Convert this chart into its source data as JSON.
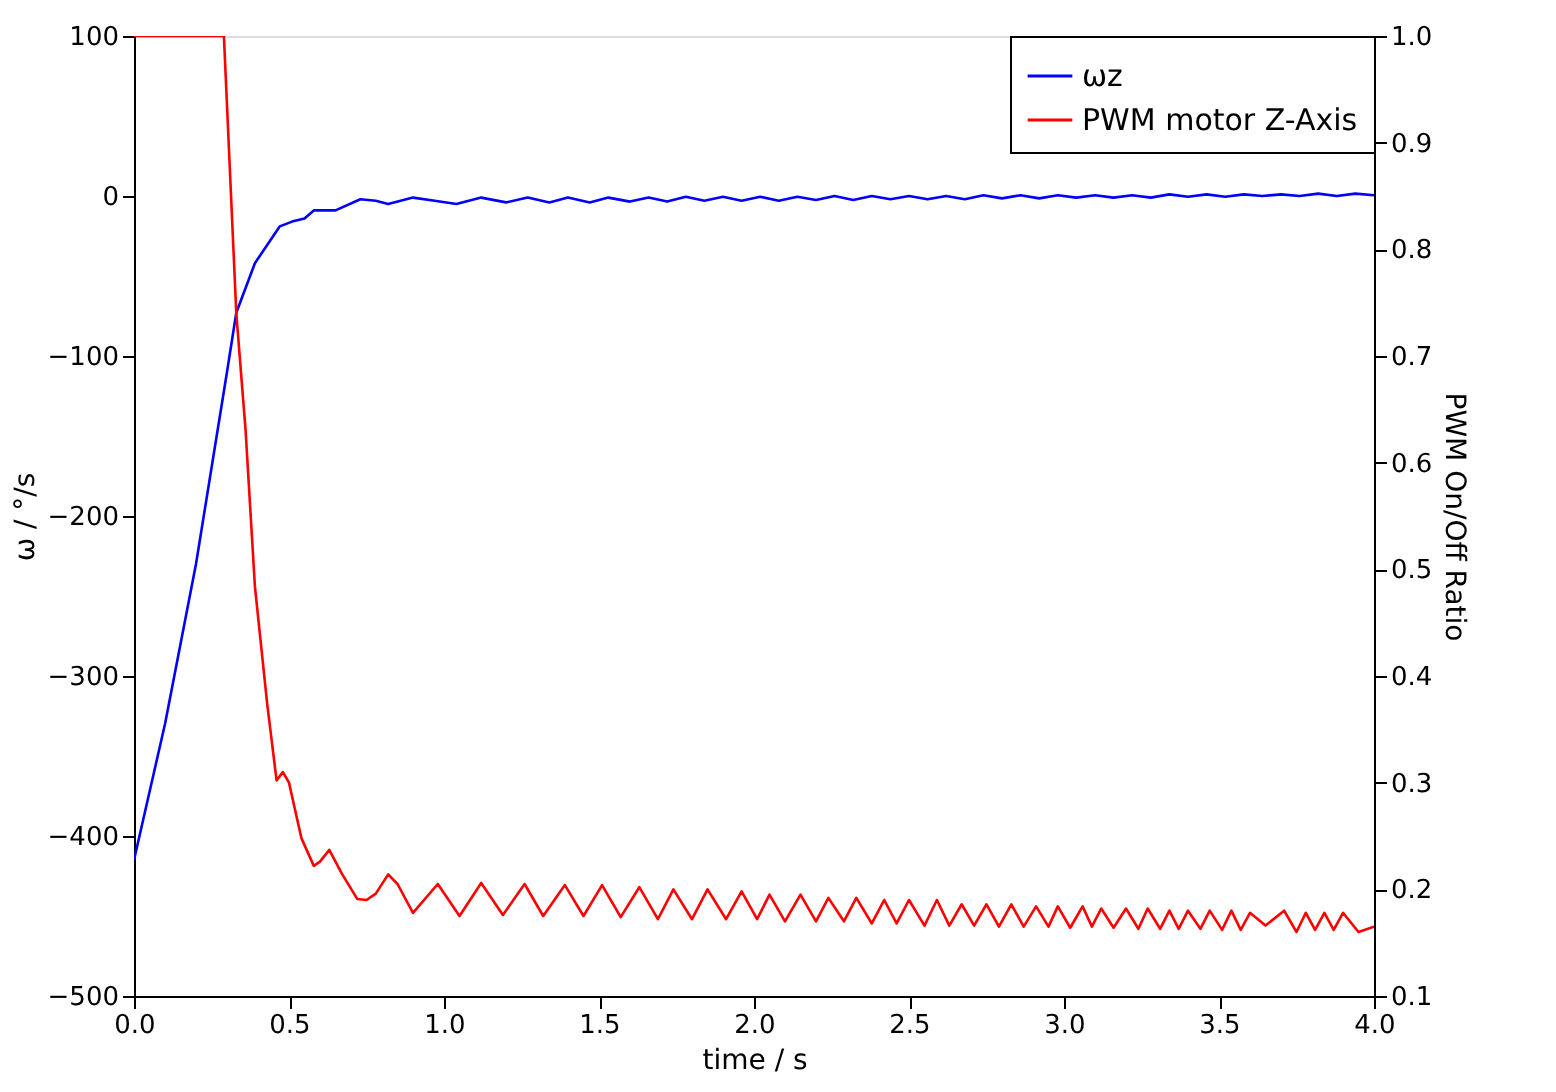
{
  "chart_data": {
    "type": "line",
    "xlabel": "time / s",
    "ylabel": "ω / °/s",
    "y2label": "PWM On/Off Ratio",
    "xlim": [
      0,
      4
    ],
    "xticks": [
      {
        "value": 0,
        "label": "0.0"
      },
      {
        "value": 0.5,
        "label": "0.5"
      },
      {
        "value": 1,
        "label": "1.0"
      },
      {
        "value": 1.5,
        "label": "1.5"
      },
      {
        "value": 2,
        "label": "2.0"
      },
      {
        "value": 2.5,
        "label": "2.5"
      },
      {
        "value": 3,
        "label": "3.0"
      },
      {
        "value": 3.5,
        "label": "3.5"
      },
      {
        "value": 4,
        "label": "4.0"
      }
    ],
    "ylim": [
      -500,
      100
    ],
    "yticks": [
      -500,
      -400,
      -300,
      -200,
      -100,
      0,
      100
    ],
    "y2lim": [
      0.1,
      1.0
    ],
    "y2ticks": [
      0.1,
      0.2,
      0.3,
      0.4,
      0.5,
      0.6,
      0.7,
      0.8,
      0.9,
      {
        "value": 1.0,
        "label": "1.0"
      }
    ],
    "legend": "top right",
    "grid": false,
    "marker": "none",
    "line_style": "solid",
    "series": [
      {
        "name": "ωz",
        "color": "#0000ff",
        "x": [
          0,
          0.1,
          0.2,
          0.3,
          0.33,
          0.39,
          0.47,
          0.51,
          0.55,
          0.58,
          0.65,
          0.73,
          0.78,
          0.82,
          0.9,
          0.97,
          1.04,
          1.12,
          1.2,
          1.27,
          1.34,
          1.4,
          1.47,
          1.53,
          1.6,
          1.66,
          1.72,
          1.78,
          1.84,
          1.9,
          1.96,
          2.02,
          2.08,
          2.14,
          2.2,
          2.26,
          2.32,
          2.38,
          2.44,
          2.5,
          2.56,
          2.62,
          2.68,
          2.74,
          2.8,
          2.86,
          2.92,
          2.98,
          3.04,
          3.1,
          3.16,
          3.22,
          3.28,
          3.34,
          3.4,
          3.46,
          3.52,
          3.58,
          3.64,
          3.7,
          3.76,
          3.82,
          3.88,
          3.94,
          4.0
        ],
        "values": [
          -415,
          -330,
          -230,
          -110,
          -73,
          -42,
          -19,
          -16,
          -14,
          -9,
          -9,
          -2,
          -3,
          -5,
          -1,
          -3,
          -5,
          -1,
          -4,
          -1,
          -4,
          -1,
          -4,
          -1,
          -3.5,
          -1,
          -3.5,
          -0.5,
          -3,
          -0.5,
          -3,
          -0.5,
          -3,
          -0.5,
          -2.5,
          0,
          -2.5,
          0,
          -2,
          0,
          -2,
          0,
          -2,
          0.5,
          -1.5,
          0.5,
          -1.5,
          0.5,
          -1,
          0.5,
          -1,
          0.5,
          -1,
          1,
          -0.5,
          1,
          -0.5,
          1,
          0,
          1,
          0,
          1.5,
          0,
          1.5,
          0.5
        ]
      },
      {
        "name": "PWM motor Z-Axis",
        "color": "#ff0000",
        "axis": "y2",
        "x": [
          0,
          0.29,
          0.33,
          0.36,
          0.39,
          0.43,
          0.46,
          0.48,
          0.5,
          0.54,
          0.58,
          0.6,
          0.63,
          0.67,
          0.72,
          0.75,
          0.78,
          0.82,
          0.85,
          0.9,
          0.98,
          1.05,
          1.12,
          1.19,
          1.26,
          1.32,
          1.39,
          1.45,
          1.51,
          1.57,
          1.63,
          1.69,
          1.74,
          1.8,
          1.85,
          1.91,
          1.96,
          2.01,
          2.05,
          2.1,
          2.15,
          2.2,
          2.24,
          2.29,
          2.33,
          2.38,
          2.42,
          2.46,
          2.5,
          2.55,
          2.59,
          2.63,
          2.67,
          2.71,
          2.75,
          2.79,
          2.83,
          2.87,
          2.91,
          2.95,
          2.98,
          3.02,
          3.06,
          3.09,
          3.12,
          3.16,
          3.2,
          3.24,
          3.27,
          3.31,
          3.34,
          3.37,
          3.4,
          3.44,
          3.47,
          3.51,
          3.54,
          3.57,
          3.6,
          3.65,
          3.71,
          3.75,
          3.78,
          3.81,
          3.84,
          3.87,
          3.9,
          3.95,
          4.0
        ],
        "values": [
          1.0,
          1.0,
          0.74,
          0.63,
          0.484,
          0.373,
          0.302,
          0.31,
          0.3,
          0.248,
          0.222,
          0.226,
          0.237,
          0.215,
          0.191,
          0.19,
          0.196,
          0.214,
          0.205,
          0.178,
          0.205,
          0.175,
          0.206,
          0.176,
          0.205,
          0.175,
          0.204,
          0.175,
          0.204,
          0.174,
          0.202,
          0.172,
          0.2,
          0.172,
          0.2,
          0.172,
          0.198,
          0.172,
          0.195,
          0.17,
          0.195,
          0.17,
          0.192,
          0.17,
          0.192,
          0.168,
          0.19,
          0.168,
          0.19,
          0.166,
          0.19,
          0.166,
          0.186,
          0.166,
          0.186,
          0.165,
          0.186,
          0.165,
          0.184,
          0.165,
          0.184,
          0.164,
          0.184,
          0.165,
          0.182,
          0.164,
          0.182,
          0.163,
          0.182,
          0.163,
          0.18,
          0.163,
          0.18,
          0.163,
          0.18,
          0.162,
          0.18,
          0.162,
          0.178,
          0.166,
          0.18,
          0.16,
          0.178,
          0.162,
          0.178,
          0.162,
          0.178,
          0.16,
          0.165
        ]
      }
    ]
  }
}
